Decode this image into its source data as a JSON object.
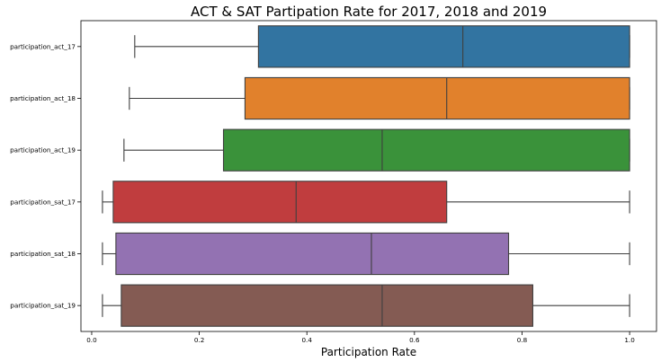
{
  "chart_data": {
    "type": "box",
    "orientation": "horizontal",
    "title": "ACT & SAT Partipation Rate for 2017, 2018 and 2019",
    "xlabel": "Participation Rate",
    "ylabel": "",
    "xlim": [
      -0.02,
      1.05
    ],
    "xticks": [
      0.0,
      0.2,
      0.4,
      0.6,
      0.8,
      1.0
    ],
    "xtick_labels": [
      "0.0",
      "0.2",
      "0.4",
      "0.6",
      "0.8",
      "1.0"
    ],
    "grid": false,
    "categories": [
      "participation_act_17",
      "participation_act_18",
      "participation_act_19",
      "participation_sat_17",
      "participation_sat_18",
      "participation_sat_19"
    ],
    "boxes": [
      {
        "whisker_low": 0.08,
        "q1": 0.31,
        "median": 0.69,
        "q3": 1.0,
        "whisker_high": 1.0,
        "color": "#3274a1"
      },
      {
        "whisker_low": 0.07,
        "q1": 0.285,
        "median": 0.66,
        "q3": 1.0,
        "whisker_high": 1.0,
        "color": "#e1812c"
      },
      {
        "whisker_low": 0.06,
        "q1": 0.245,
        "median": 0.54,
        "q3": 1.0,
        "whisker_high": 1.0,
        "color": "#3a923a"
      },
      {
        "whisker_low": 0.02,
        "q1": 0.04,
        "median": 0.38,
        "q3": 0.66,
        "whisker_high": 1.0,
        "color": "#c03d3e"
      },
      {
        "whisker_low": 0.02,
        "q1": 0.045,
        "median": 0.52,
        "q3": 0.775,
        "whisker_high": 1.0,
        "color": "#9372b2"
      },
      {
        "whisker_low": 0.02,
        "q1": 0.055,
        "median": 0.54,
        "q3": 0.82,
        "whisker_high": 1.0,
        "color": "#845b53"
      }
    ]
  }
}
